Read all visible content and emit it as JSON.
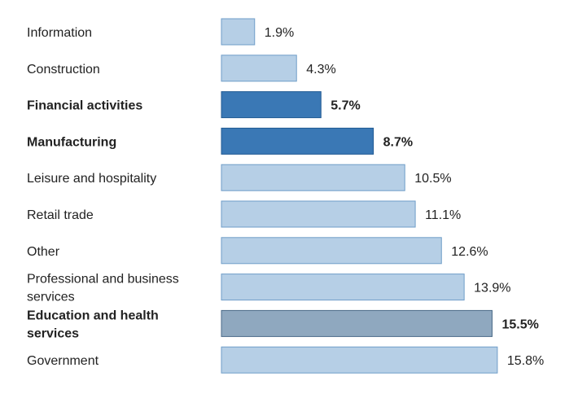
{
  "chart_data": {
    "type": "bar",
    "orientation": "horizontal",
    "title": "",
    "xlabel": "",
    "ylabel": "",
    "grid": false,
    "legend": "none",
    "categories": [
      "Information",
      "Construction",
      "Financial activities",
      "Manufacturing",
      "Leisure and hospitality",
      "Retail trade",
      "Other",
      "Professional and business services",
      "Education and health services",
      "Government"
    ],
    "values": [
      1.9,
      4.3,
      5.7,
      8.7,
      10.5,
      11.1,
      12.6,
      13.9,
      15.5,
      15.8
    ],
    "value_labels": [
      "1.9%",
      "4.3%",
      "5.7%",
      "8.7%",
      "10.5%",
      "11.1%",
      "12.6%",
      "13.9%",
      "15.5%",
      "15.8%"
    ],
    "emphasis": [
      "normal",
      "normal",
      "highlight",
      "highlight",
      "normal",
      "normal",
      "normal",
      "normal",
      "alternate",
      "normal"
    ],
    "colors": {
      "normal_fill": "#b6cfe6",
      "normal_stroke": "#6f9dc8",
      "highlight_fill": "#3a78b5",
      "highlight_stroke": "#215a93",
      "alternate_fill": "#8fa8bf",
      "alternate_stroke": "#4a6a88"
    }
  }
}
